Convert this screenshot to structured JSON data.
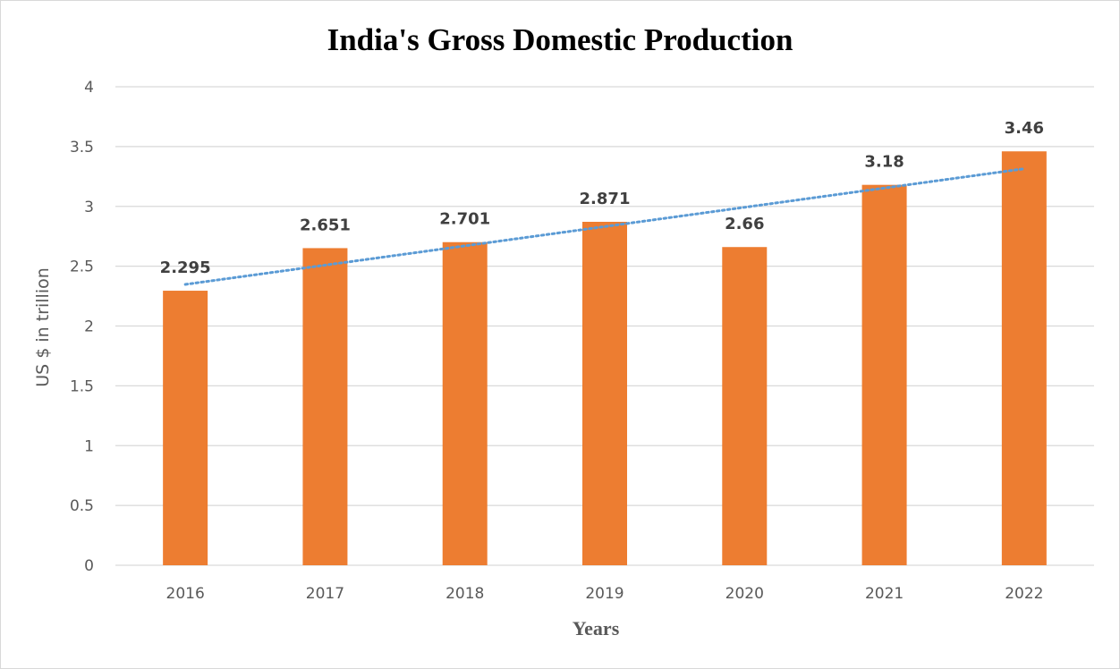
{
  "chart_data": {
    "type": "bar",
    "title": "India's Gross Domestic Production",
    "xlabel": "Years",
    "ylabel": "US $ in trillion",
    "categories": [
      "2016",
      "2017",
      "2018",
      "2019",
      "2020",
      "2021",
      "2022"
    ],
    "values": [
      2.295,
      2.651,
      2.701,
      2.871,
      2.66,
      3.18,
      3.46
    ],
    "data_labels": [
      "2.295",
      "2.651",
      "2.701",
      "2.871",
      "2.66",
      "3.18",
      "3.46"
    ],
    "ylim": [
      0,
      4
    ],
    "yticks": [
      "0",
      "0.5",
      "1",
      "1.5",
      "2",
      "2.5",
      "3",
      "3.5",
      "4"
    ],
    "grid": true,
    "trendline": {
      "type": "linear",
      "style": "dotted"
    },
    "colors": {
      "bar": "#ED7D31",
      "trendline": "#5B9BD5",
      "grid": "#D9D9D9"
    }
  }
}
